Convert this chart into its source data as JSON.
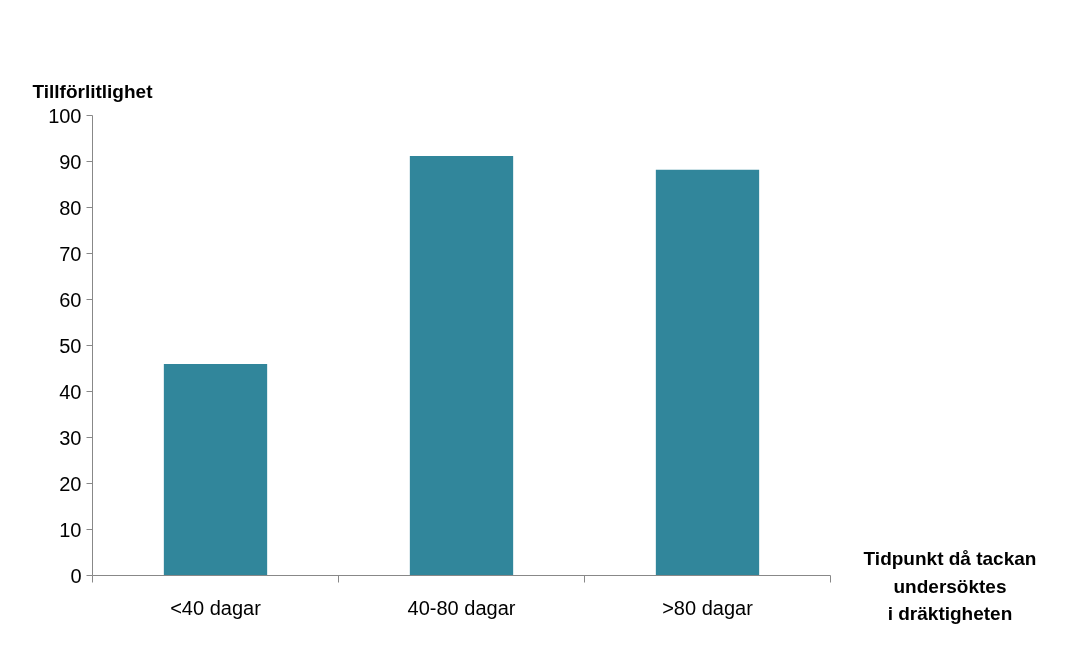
{
  "chart_data": {
    "type": "bar",
    "ylabel": "Tillförlitlighet",
    "xlabel": "Tidpunkt då tackan\nundersöktes\ni dräktigheten",
    "categories": [
      "<40 dagar",
      "40-80 dagar",
      ">80 dagar"
    ],
    "values": [
      46,
      91.2,
      88.2
    ],
    "color": "#31869b",
    "ylim": [
      0,
      100
    ],
    "yticks": [
      0,
      10,
      20,
      30,
      40,
      50,
      60,
      70,
      80,
      90,
      100
    ],
    "grid": false
  }
}
